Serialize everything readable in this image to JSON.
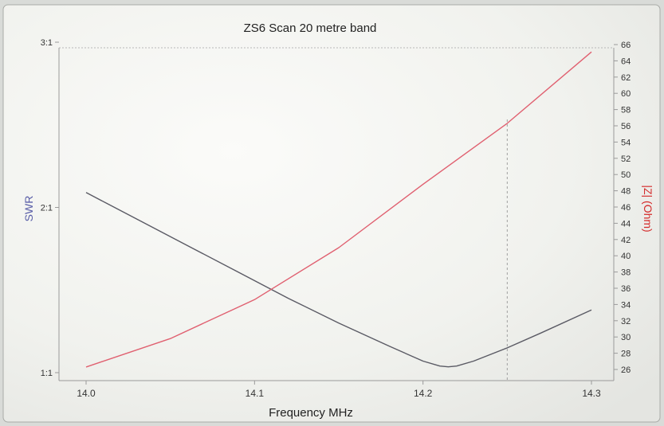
{
  "chart_data": {
    "type": "line",
    "title": "ZS6 Scan  20 metre band",
    "xlabel": "Frequency MHz",
    "ylabel_left": "SWR",
    "ylabel_right": "|Z| (Ohm)",
    "x_ticks": [
      "14.0",
      "14.1",
      "14.2",
      "14.3"
    ],
    "xlim": [
      14.0,
      14.3
    ],
    "y_left_ticks": [
      "1:1",
      "2:1",
      "3:1"
    ],
    "y_left_lim": [
      1,
      3
    ],
    "y_right_ticks": [
      "26",
      "28",
      "30",
      "32",
      "34",
      "36",
      "38",
      "40",
      "42",
      "44",
      "46",
      "48",
      "50",
      "52",
      "54",
      "56",
      "58",
      "60",
      "62",
      "64",
      "66"
    ],
    "y_right_lim": [
      26,
      66
    ],
    "marker_x": 14.25,
    "series": [
      {
        "axis": "left",
        "color": "#5a5a64",
        "x": [
          14.0,
          14.03,
          14.06,
          14.09,
          14.12,
          14.15,
          14.18,
          14.2,
          14.21,
          14.215,
          14.22,
          14.23,
          14.25,
          14.27,
          14.3
        ],
        "y": [
          2.09,
          1.93,
          1.77,
          1.61,
          1.45,
          1.3,
          1.16,
          1.07,
          1.04,
          1.035,
          1.04,
          1.07,
          1.15,
          1.24,
          1.38
        ]
      },
      {
        "axis": "right",
        "color": "#e06070",
        "x": [
          14.0,
          14.05,
          14.1,
          14.15,
          14.2,
          14.25,
          14.3
        ],
        "y": [
          26.3,
          29.8,
          34.6,
          41.0,
          48.8,
          56.3,
          65.1
        ]
      }
    ]
  }
}
